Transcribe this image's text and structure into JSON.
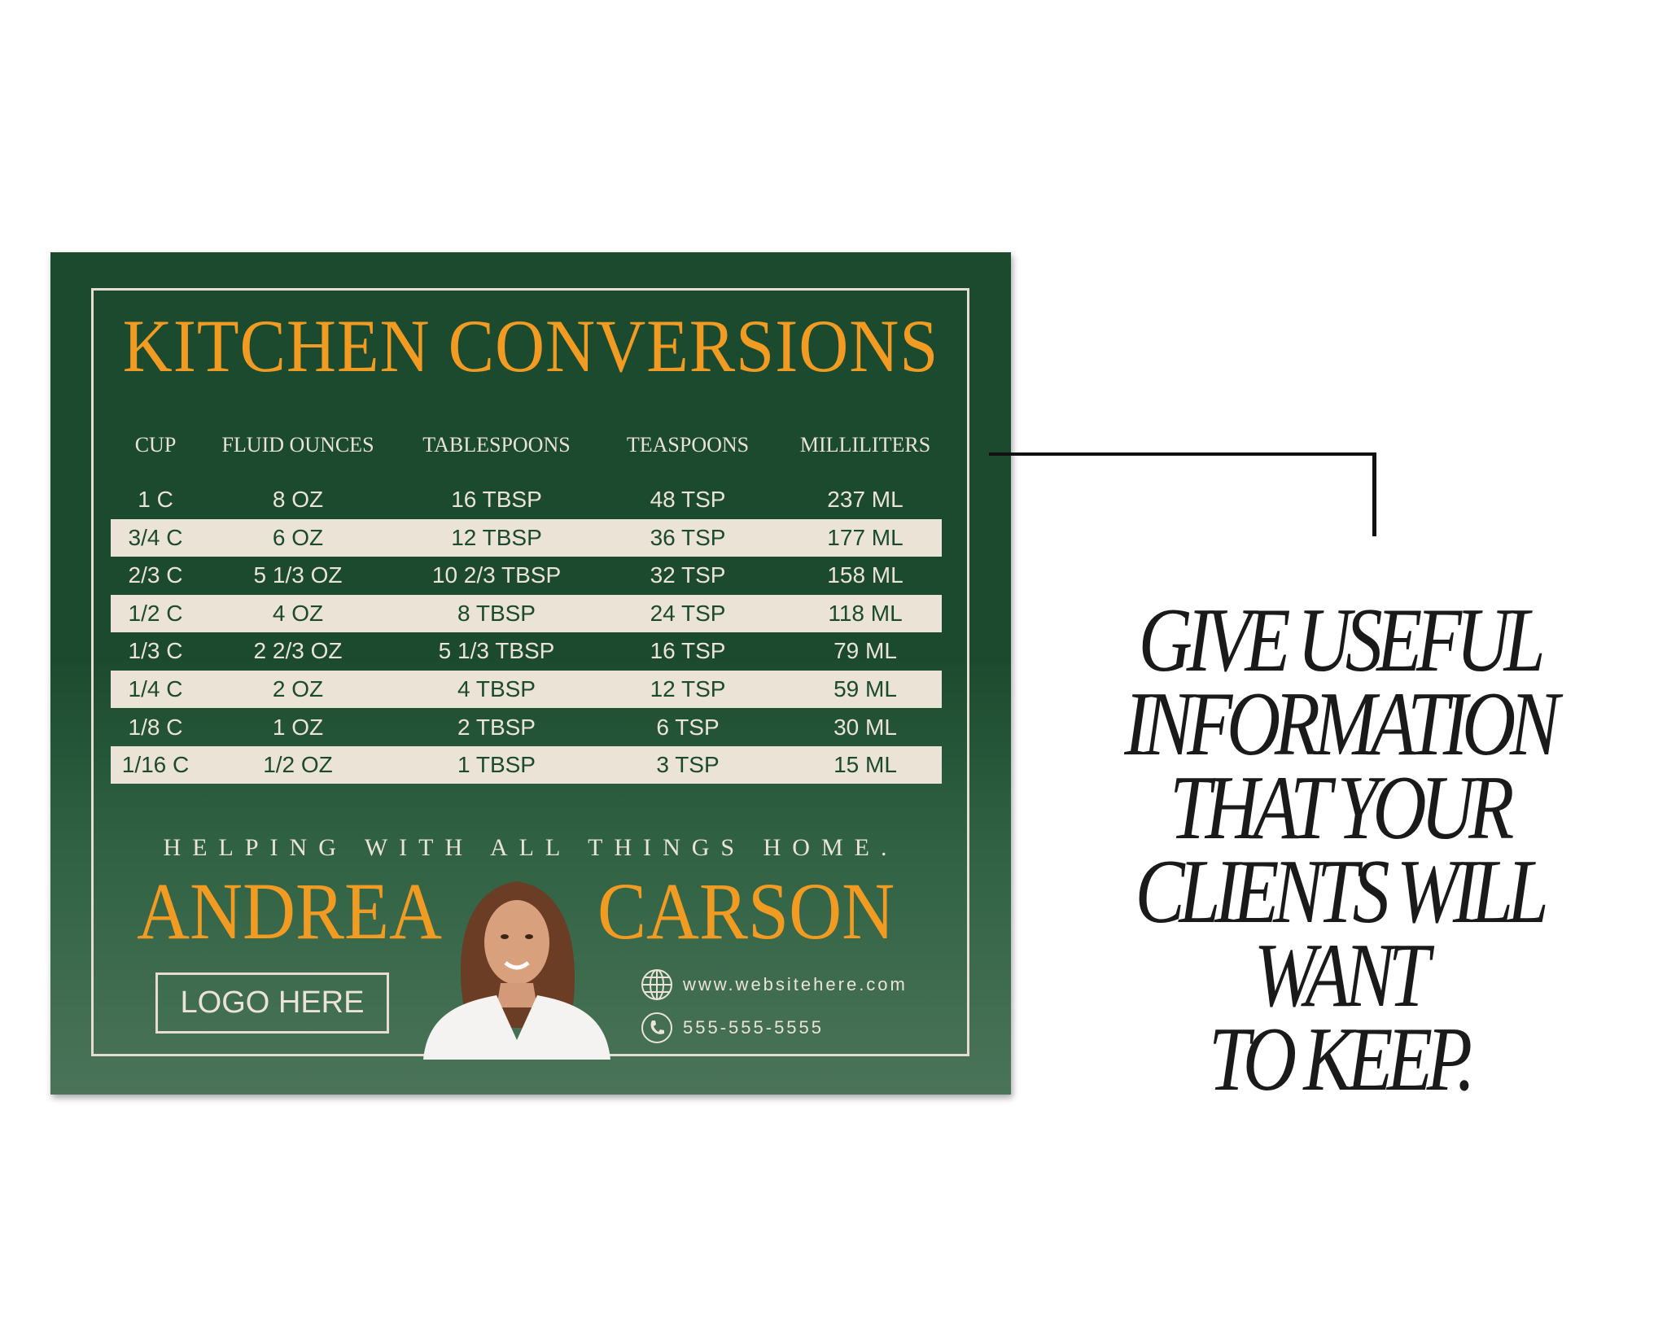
{
  "card": {
    "title": "KITCHEN CONVERSIONS",
    "headers": [
      "CUP",
      "FLUID OUNCES",
      "TABLESPOONS",
      "TEASPOONS",
      "MILLILITERS"
    ],
    "rows": [
      [
        "1 C",
        "8 OZ",
        "16 TBSP",
        "48 TSP",
        "237 ML"
      ],
      [
        "3/4 C",
        "6 OZ",
        "12 TBSP",
        "36 TSP",
        "177 ML"
      ],
      [
        "2/3 C",
        "5 1/3 OZ",
        "10 2/3 TBSP",
        "32 TSP",
        "158 ML"
      ],
      [
        "1/2 C",
        "4 OZ",
        "8 TBSP",
        "24 TSP",
        "118 ML"
      ],
      [
        "1/3 C",
        "2 2/3 OZ",
        "5 1/3 TBSP",
        "16 TSP",
        "79 ML"
      ],
      [
        "1/4 C",
        "2 OZ",
        "4 TBSP",
        "12 TSP",
        "59 ML"
      ],
      [
        "1/8 C",
        "1 OZ",
        "2 TBSP",
        "6 TSP",
        "30 ML"
      ],
      [
        "1/16 C",
        "1/2 OZ",
        "1 TBSP",
        "3 TSP",
        "15 ML"
      ]
    ],
    "tagline": "HELPING WITH ALL THINGS HOME.",
    "first_name": "ANDREA",
    "last_name": "CARSON",
    "logo_placeholder": "LOGO HERE",
    "website": "www.websitehere.com",
    "phone": "555-555-5555",
    "icons": {
      "website": "globe-icon",
      "phone": "phone-icon"
    }
  },
  "side_text": [
    "GIVE USEFUL",
    "INFORMATION",
    "THAT YOUR",
    "CLIENTS WILL",
    "WANT",
    "TO KEEP."
  ],
  "colors": {
    "green": "#1c4a2e",
    "orange": "#f29b23",
    "cream": "#ebe3d6"
  }
}
